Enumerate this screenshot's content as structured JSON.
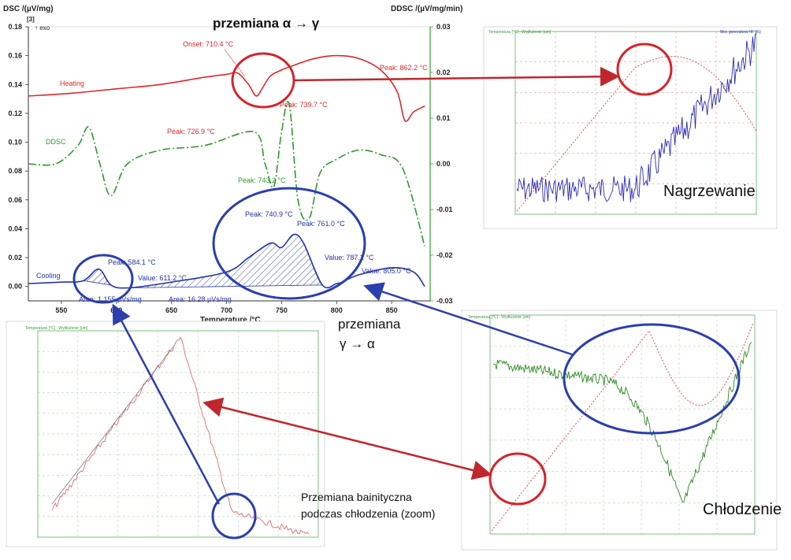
{
  "colors": {
    "heating": "#e0262a",
    "ddsc": "#2d9a2d",
    "cooling": "#2233aa",
    "panel_red": "#d9534f",
    "panel_blue": "#2b2fb0",
    "panel_green": "#2a8a1f",
    "arrow_red": "#c0272d",
    "arrow_blue": "#2b3fae",
    "axis_green": "#2fa02f"
  },
  "main": {
    "y_left_title": "DSC /(µV/mg)",
    "y_right_title": "DDSC /(µV/mg/min)",
    "exo_ref": "[3]",
    "exo_label": "↑ exo",
    "x_title": "Temperature /°C",
    "x_ticks": [
      "550",
      "600",
      "650",
      "700",
      "750",
      "800",
      "850"
    ],
    "y_left_ticks": [
      "0.18",
      "0.16",
      "0.14",
      "0.12",
      "0.10",
      "0.08",
      "0.06",
      "0.04",
      "0.02",
      "0.00"
    ],
    "y_right_ticks": [
      "0.03",
      "0.02",
      "0.01",
      "0.00",
      "-0.01",
      "-0.02",
      "-0.03"
    ],
    "curve_labels": {
      "heating": "Heating",
      "ddsc": "DDSC",
      "cooling": "Cooling"
    },
    "annotations": {
      "onset": "Onset: 710.4 °C",
      "peak862": "Peak: 862.2 °C",
      "peak739": "Peak: 739.7 °C",
      "peak726": "Peak: 726.9 °C",
      "peak743": "Peak: 743.2 °C",
      "peak740": "Peak: 740.9 °C",
      "peak761": "Peak: 761.0 °C",
      "peak584": "Peak: 584.1 °C",
      "value611": "Value: 611.2 °C",
      "value787": "Value: 787.2 °C",
      "value805": "Value: 805.0 °C",
      "area1": "Area: 1.155 µVs/mg",
      "area2": "Area: 16.28 µVs/mg"
    }
  },
  "titles": {
    "alpha_gamma": "przemiana α → γ",
    "gamma_alpha_1": "przemiana",
    "gamma_alpha_2": "γ → α",
    "nagrzewanie": "Nagrzewanie",
    "chlodzenie": "Chłodzenie",
    "bainite_1": "Przemiana bainityczna",
    "bainite_2": "podczas chłodzenia (zoom)"
  },
  "panels": {
    "top_right_title_left": "Temperatura [°C] - Wydłużenie [um]",
    "top_right_title_right": "Moc generatora HF [%]",
    "bottom_left_title": "Temperatura [°C] - Wydłużenie [um]",
    "bottom_right_title": "Temperatura [°C] - Wydłużenie [um]"
  },
  "chart_data": [
    {
      "type": "line",
      "title": "",
      "xlabel": "Temperature /°C",
      "ylabel": "DSC /(µV/mg)",
      "ylabel_right": "DDSC /(µV/mg/min)",
      "xlim": [
        520,
        885
      ],
      "ylim": [
        -0.01,
        0.18
      ],
      "ylim_right": [
        -0.03,
        0.03
      ],
      "grid": false,
      "series": [
        {
          "name": "Heating",
          "axis": "left",
          "x": [
            520,
            560,
            600,
            640,
            680,
            700,
            710,
            720,
            727,
            733,
            740,
            750,
            760,
            780,
            800,
            820,
            840,
            855,
            862,
            870,
            880
          ],
          "y": [
            0.132,
            0.134,
            0.137,
            0.14,
            0.145,
            0.147,
            0.148,
            0.14,
            0.132,
            0.138,
            0.146,
            0.15,
            0.153,
            0.158,
            0.16,
            0.158,
            0.15,
            0.135,
            0.115,
            0.121,
            0.125
          ]
        },
        {
          "name": "DDSC",
          "axis": "right",
          "x": [
            520,
            545,
            565,
            575,
            585,
            595,
            610,
            640,
            680,
            725,
            735,
            743,
            750,
            757,
            765,
            775,
            785,
            800,
            820,
            840,
            860,
            880
          ],
          "y": [
            0.0,
            0.0,
            0.004,
            0.008,
            0.0,
            -0.007,
            0.0,
            0.003,
            0.004,
            0.007,
            0.0,
            -0.005,
            0.007,
            0.013,
            -0.008,
            -0.012,
            -0.002,
            0.001,
            0.003,
            0.002,
            -0.001,
            -0.018
          ]
        },
        {
          "name": "Cooling",
          "axis": "left",
          "x": [
            520,
            550,
            570,
            584,
            595,
            611,
            650,
            700,
            720,
            740,
            750,
            761,
            770,
            787,
            800,
            805,
            820,
            850,
            870,
            880
          ],
          "y": [
            0.002,
            0.003,
            0.004,
            0.012,
            0.001,
            -0.001,
            0.003,
            0.01,
            0.02,
            0.03,
            0.027,
            0.036,
            0.03,
            0.001,
            0.002,
            0.003,
            0.008,
            0.013,
            0.01,
            0.0
          ]
        }
      ],
      "annotations": [
        "Onset: 710.4 °C",
        "Peak: 862.2 °C",
        "Peak: 739.7 °C",
        "Peak: 726.9 °C",
        "Peak: 743.2 °C",
        "Peak: 740.9 °C",
        "Peak: 761.0 °C",
        "Peak: 584.1 °C",
        "Value: 611.2 °C",
        "Value: 787.2 °C",
        "Value: 805.0 °C",
        "Area: 1.155 µVs/mg",
        "Area: 16.28 µVs/mg"
      ]
    },
    {
      "type": "line",
      "title": "Nagrzewanie",
      "series": [
        {
          "name": "Temperatura [°C] - Wydłużenie [um]"
        },
        {
          "name": "Moc generatora HF [%]"
        }
      ]
    },
    {
      "type": "line",
      "title": "Chłodzenie",
      "series": [
        {
          "name": "Temperatura [°C] - Wydłużenie [um]"
        }
      ]
    },
    {
      "type": "line",
      "title": "Przemiana bainityczna podczas chłodzenia (zoom)",
      "series": [
        {
          "name": "Temperatura [°C] - Wydłużenie [um]"
        }
      ]
    }
  ]
}
